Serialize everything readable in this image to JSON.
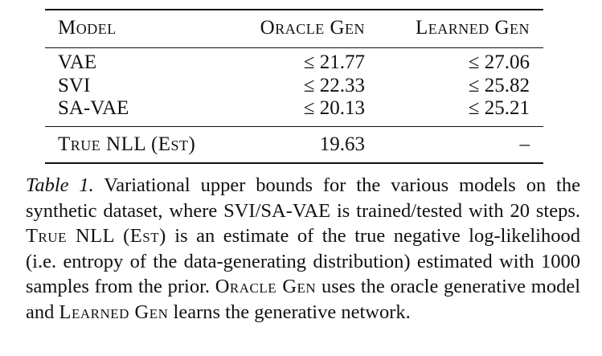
{
  "table": {
    "headers": {
      "model": "Model",
      "oracle_gen": "Oracle Gen",
      "learned_gen": "Learned Gen"
    },
    "rows": [
      {
        "model": "VAE",
        "oracle_gen": "≤ 21.77",
        "learned_gen": "≤ 27.06"
      },
      {
        "model": "SVI",
        "oracle_gen": "≤ 22.33",
        "learned_gen": "≤ 25.82"
      },
      {
        "model": "SA-VAE",
        "oracle_gen": "≤ 20.13",
        "learned_gen": "≤ 25.21"
      }
    ],
    "true_nll": {
      "label": "True NLL (Est)",
      "oracle_gen": "19.63",
      "learned_gen": "–"
    }
  },
  "caption": {
    "label": "Table 1.",
    "text_1": "Variational upper bounds for the various models on the synthetic dataset, where SVI/SA-VAE is trained/tested with 20 steps.",
    "ref_true_nll": "True NLL (Est)",
    "text_2": "is an estimate of the true negative log-likelihood (i.e. entropy of the data-generating distribution) estimated with 1000 samples from the prior.",
    "ref_oracle": "Oracle Gen",
    "text_3": "uses the oracle generative model and",
    "ref_learned": "Learned Gen",
    "text_4": "learns the generative network."
  }
}
